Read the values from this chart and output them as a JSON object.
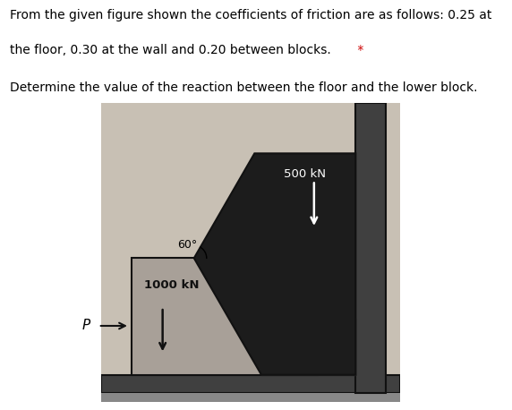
{
  "text_line1": "From the given figure shown the coefficients of friction are as follows: 0.25 at",
  "text_line2_part1": "the floor, 0.30 at the wall and 0.20 between blocks.",
  "text_line2_star": " *",
  "text_line3": "Determine the value of the reaction between the floor and the lower block.",
  "diagram_bg": "#c8c0b4",
  "lower_block_color": "#a8a098",
  "lower_block_edge": "#111111",
  "upper_wedge_color": "#1c1c1c",
  "wall_color": "#404040",
  "floor_color": "#404040",
  "light_rect_color": "#d4d0c8",
  "hatch_color": "#555555",
  "label_1000": "1000 kN",
  "label_500": "500 kN",
  "label_angle": "60°",
  "label_P": "P",
  "arrow_color_black": "#111111",
  "arrow_color_white": "#ffffff",
  "text_color_black": "#111111",
  "text_color_white": "#ffffff",
  "fig_width": 5.72,
  "fig_height": 4.58,
  "dpi": 100
}
